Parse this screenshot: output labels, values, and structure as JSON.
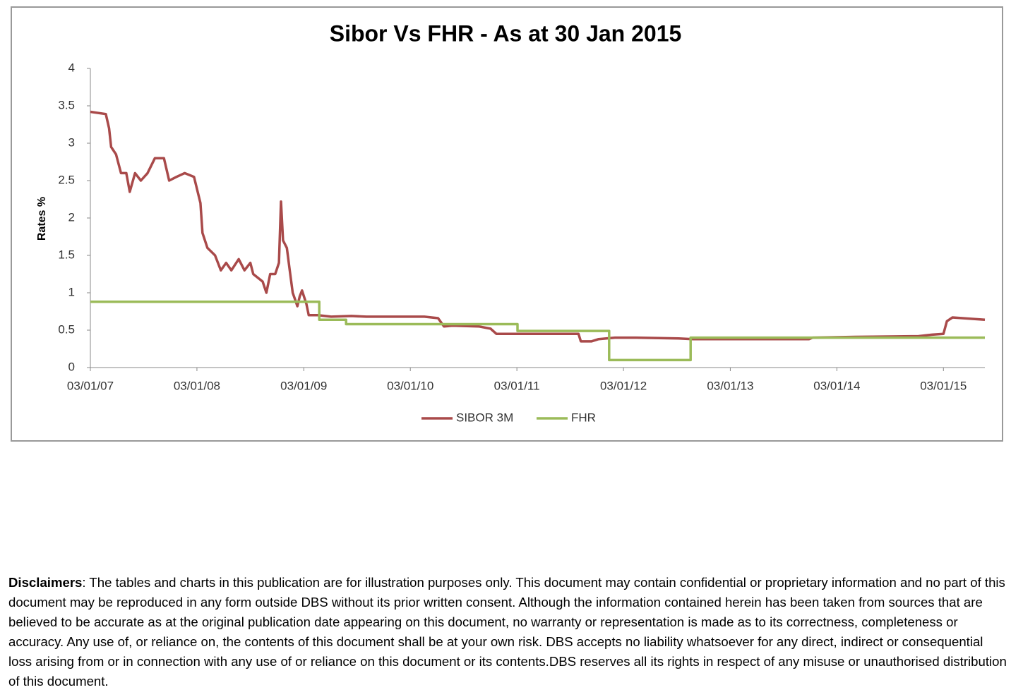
{
  "chart_data": {
    "type": "line",
    "title": "Sibor Vs FHR - As at 30 Jan 2015",
    "y_label": "Rates %",
    "xlim": [
      "2007-01-03",
      "2015-05-25"
    ],
    "xticks": [
      {
        "value": "2007-01-03",
        "label": "03/01/07"
      },
      {
        "value": "2008-01-03",
        "label": "03/01/08"
      },
      {
        "value": "2009-01-03",
        "label": "03/01/09"
      },
      {
        "value": "2010-01-03",
        "label": "03/01/10"
      },
      {
        "value": "2011-01-03",
        "label": "03/01/11"
      },
      {
        "value": "2012-01-03",
        "label": "03/01/12"
      },
      {
        "value": "2013-01-03",
        "label": "03/01/13"
      },
      {
        "value": "2014-01-03",
        "label": "03/01/14"
      },
      {
        "value": "2015-01-03",
        "label": "03/01/15"
      }
    ],
    "ylim": [
      0,
      4
    ],
    "yticks": [
      0,
      0.5,
      1,
      1.5,
      2,
      2.5,
      3,
      3.5,
      4
    ],
    "grid": false,
    "legend": "bottom",
    "series": [
      {
        "name": "SIBOR 3M",
        "color": "#a94a4a",
        "x": [
          "2007-01-03",
          "2007-02-25",
          "2007-03-08",
          "2007-03-15",
          "2007-04-01",
          "2007-04-18",
          "2007-05-06",
          "2007-05-18",
          "2007-06-05",
          "2007-06-25",
          "2007-07-18",
          "2007-08-12",
          "2007-09-12",
          "2007-09-30",
          "2007-10-25",
          "2007-11-22",
          "2007-12-24",
          "2008-01-15",
          "2008-01-22",
          "2008-02-08",
          "2008-03-05",
          "2008-03-25",
          "2008-04-12",
          "2008-04-30",
          "2008-05-25",
          "2008-06-14",
          "2008-07-04",
          "2008-07-14",
          "2008-08-15",
          "2008-08-28",
          "2008-09-10",
          "2008-09-27",
          "2008-10-10",
          "2008-10-17",
          "2008-10-24",
          "2008-11-06",
          "2008-11-16",
          "2008-11-26",
          "2008-12-05",
          "2008-12-12",
          "2008-12-20",
          "2008-12-28",
          "2009-01-12",
          "2009-01-20",
          "2009-02-20",
          "2009-04-07",
          "2009-06-15",
          "2009-08-05",
          "2009-11-15",
          "2010-02-20",
          "2010-04-08",
          "2010-04-28",
          "2010-05-28",
          "2010-08-25",
          "2010-10-05",
          "2010-10-25",
          "2011-03-12",
          "2011-08-02",
          "2011-08-10",
          "2011-09-15",
          "2011-10-10",
          "2011-12-05",
          "2012-02-15",
          "2012-07-10",
          "2012-08-27",
          "2013-03-30",
          "2013-09-30",
          "2013-10-12",
          "2014-03-06",
          "2014-10-10",
          "2014-11-25",
          "2015-01-03",
          "2015-01-15",
          "2015-02-03",
          "2015-05-25"
        ],
        "values": [
          3.42,
          3.39,
          3.2,
          2.95,
          2.85,
          2.6,
          2.6,
          2.35,
          2.6,
          2.5,
          2.6,
          2.8,
          2.8,
          2.5,
          2.55,
          2.6,
          2.55,
          2.2,
          1.8,
          1.6,
          1.5,
          1.3,
          1.4,
          1.3,
          1.45,
          1.3,
          1.4,
          1.25,
          1.15,
          1.0,
          1.25,
          1.25,
          1.4,
          2.22,
          1.7,
          1.6,
          1.3,
          1.0,
          0.9,
          0.82,
          0.95,
          1.03,
          0.85,
          0.7,
          0.7,
          0.68,
          0.69,
          0.68,
          0.68,
          0.68,
          0.66,
          0.55,
          0.56,
          0.55,
          0.52,
          0.45,
          0.45,
          0.45,
          0.35,
          0.35,
          0.38,
          0.4,
          0.4,
          0.39,
          0.38,
          0.38,
          0.38,
          0.4,
          0.41,
          0.42,
          0.44,
          0.45,
          0.62,
          0.67,
          0.64
        ]
      },
      {
        "name": "FHR",
        "color": "#9bbb59",
        "x": [
          "2007-01-03",
          "2009-02-25",
          "2009-02-25",
          "2009-05-28",
          "2009-05-28",
          "2011-01-05",
          "2011-01-05",
          "2011-11-15",
          "2011-11-15",
          "2012-08-20",
          "2012-08-20",
          "2015-05-25"
        ],
        "values": [
          0.88,
          0.88,
          0.64,
          0.64,
          0.58,
          0.58,
          0.49,
          0.49,
          0.1,
          0.1,
          0.4,
          0.4
        ]
      }
    ]
  },
  "disclaimer": {
    "label": "Disclaimers",
    "text": ": The tables and charts in this publication are for illustration purposes only. This document may contain confidential or proprietary information and no part of this document may be reproduced in any form outside DBS without its prior written consent. Although the information contained herein has been taken from sources that are believed to be accurate as at the original publication date appearing on this document, no warranty or representation is made as to its correctness, completeness or accuracy. Any use of, or reliance on, the contents of this document shall be at your own risk. DBS accepts no liability whatsoever for any direct, indirect or consequential loss arising from or in connection with any use of or reliance on this document or its contents.DBS reserves all its rights in respect of any misuse or unauthorised distribution of this document."
  }
}
